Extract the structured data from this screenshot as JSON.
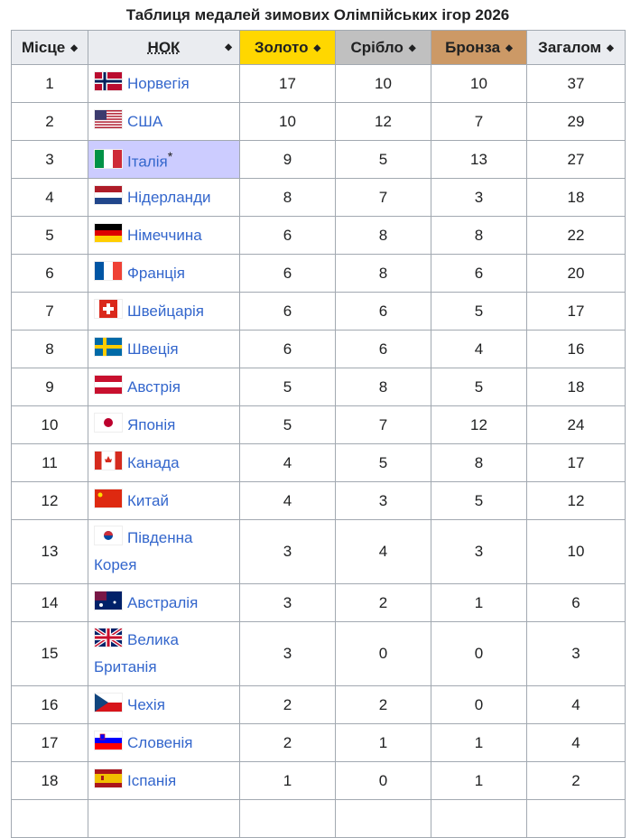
{
  "caption": "Таблиця медалей зимових Олімпійських ігор 2026",
  "headers": {
    "place": "Місце",
    "noc": "НОК",
    "gold": "Золото",
    "silver": "Срібло",
    "bronze": "Бронза",
    "total": "Загалом",
    "sort_icon": "sort-arrows-icon"
  },
  "colors": {
    "gold": "#ffd700",
    "silver": "#c0c0c0",
    "bronze": "#cc9966",
    "host": "#ccccff",
    "link": "#3366cc"
  },
  "host_marker": "*",
  "rows": [
    {
      "rank": "1",
      "flag": "NO",
      "country": "Норвегія",
      "gold": "17",
      "silver": "10",
      "bronze": "10",
      "total": "37"
    },
    {
      "rank": "2",
      "flag": "US",
      "country": "США",
      "gold": "10",
      "silver": "12",
      "bronze": "7",
      "total": "29"
    },
    {
      "rank": "3",
      "flag": "IT",
      "country": "Італія",
      "host": true,
      "gold": "9",
      "silver": "5",
      "bronze": "13",
      "total": "27"
    },
    {
      "rank": "4",
      "flag": "NL",
      "country": "Нідерланди",
      "gold": "8",
      "silver": "7",
      "bronze": "3",
      "total": "18"
    },
    {
      "rank": "5",
      "flag": "DE",
      "country": "Німеччина",
      "gold": "6",
      "silver": "8",
      "bronze": "8",
      "total": "22"
    },
    {
      "rank": "6",
      "flag": "FR",
      "country": "Франція",
      "gold": "6",
      "silver": "8",
      "bronze": "6",
      "total": "20"
    },
    {
      "rank": "7",
      "flag": "CH",
      "country": "Швейцарія",
      "gold": "6",
      "silver": "6",
      "bronze": "5",
      "total": "17"
    },
    {
      "rank": "8",
      "flag": "SE",
      "country": "Швеція",
      "gold": "6",
      "silver": "6",
      "bronze": "4",
      "total": "16"
    },
    {
      "rank": "9",
      "flag": "AT",
      "country": "Австрія",
      "gold": "5",
      "silver": "8",
      "bronze": "5",
      "total": "18"
    },
    {
      "rank": "10",
      "flag": "JP",
      "country": "Японія",
      "gold": "5",
      "silver": "7",
      "bronze": "12",
      "total": "24"
    },
    {
      "rank": "11",
      "flag": "CA",
      "country": "Канада",
      "gold": "4",
      "silver": "5",
      "bronze": "8",
      "total": "17"
    },
    {
      "rank": "12",
      "flag": "CN",
      "country": "Китай",
      "gold": "4",
      "silver": "3",
      "bronze": "5",
      "total": "12"
    },
    {
      "rank": "13",
      "flag": "KR",
      "country": "Південна Корея",
      "gold": "3",
      "silver": "4",
      "bronze": "3",
      "total": "10"
    },
    {
      "rank": "14",
      "flag": "AU",
      "country": "Австралія",
      "gold": "3",
      "silver": "2",
      "bronze": "1",
      "total": "6"
    },
    {
      "rank": "15",
      "flag": "GB",
      "country": "Велика Британія",
      "gold": "3",
      "silver": "0",
      "bronze": "0",
      "total": "3"
    },
    {
      "rank": "16",
      "flag": "CZ",
      "country": "Чехія",
      "gold": "2",
      "silver": "2",
      "bronze": "0",
      "total": "4"
    },
    {
      "rank": "17",
      "flag": "SI",
      "country": "Словенія",
      "gold": "2",
      "silver": "1",
      "bronze": "1",
      "total": "4"
    },
    {
      "rank": "18",
      "flag": "ES",
      "country": "Іспанія",
      "gold": "1",
      "silver": "0",
      "bronze": "1",
      "total": "2"
    }
  ]
}
